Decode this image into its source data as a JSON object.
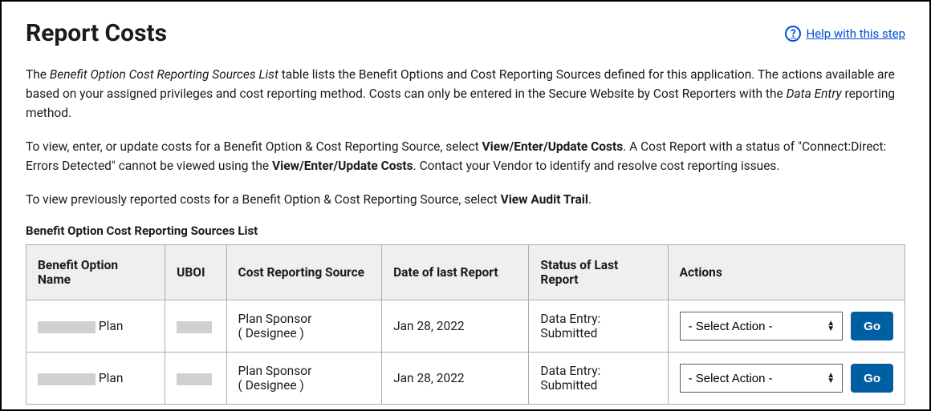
{
  "header": {
    "title": "Report Costs",
    "help_label": "Help with this step"
  },
  "intro": {
    "p1_a": "The ",
    "p1_italic": "Benefit Option Cost Reporting Sources List",
    "p1_b": " table lists the Benefit Options and Cost Reporting Sources defined for this application. The actions available are based on your assigned privileges and cost reporting method. Costs can only be entered in the Secure Website by Cost Reporters with the ",
    "p1_italic2": "Data Entry",
    "p1_c": " reporting method.",
    "p2_a": "To view, enter, or update costs for a Benefit Option & Cost Reporting Source, select ",
    "p2_bold1": "View/Enter/Update Costs",
    "p2_b": ". A Cost Report with a status of \"Connect:Direct: Errors Detected\" cannot be viewed using the ",
    "p2_bold2": "View/Enter/Update Costs",
    "p2_c": ". Contact your Vendor to identify and resolve cost reporting issues.",
    "p3_a": "To view previously reported costs for a Benefit Option & Cost Reporting Source, select ",
    "p3_bold": "View Audit Trail",
    "p3_b": "."
  },
  "table": {
    "title": "Benefit Option Cost Reporting Sources List",
    "columns": {
      "name": "Benefit Option Name",
      "uboi": "UBOI",
      "source": "Cost Reporting Source",
      "date": "Date of last Report",
      "status": "Status of Last Report",
      "actions": "Actions"
    },
    "rows": [
      {
        "name_suffix": " Plan",
        "source_line1": "Plan Sponsor",
        "source_line2": "( Designee )",
        "date": "Jan 28, 2022",
        "status": "Data Entry: Submitted",
        "select_value": "- Select Action -",
        "go_label": "Go"
      },
      {
        "name_suffix": " Plan",
        "source_line1": "Plan Sponsor",
        "source_line2": "( Designee )",
        "date": "Jan 28, 2022",
        "status": "Data Entry: Submitted",
        "select_value": "- Select Action -",
        "go_label": "Go"
      }
    ]
  },
  "colors": {
    "link": "#0050d8",
    "button_bg": "#005ea2",
    "header_bg": "#efefef",
    "border": "#a9aeb1",
    "redacted": "#d0d0d0"
  }
}
